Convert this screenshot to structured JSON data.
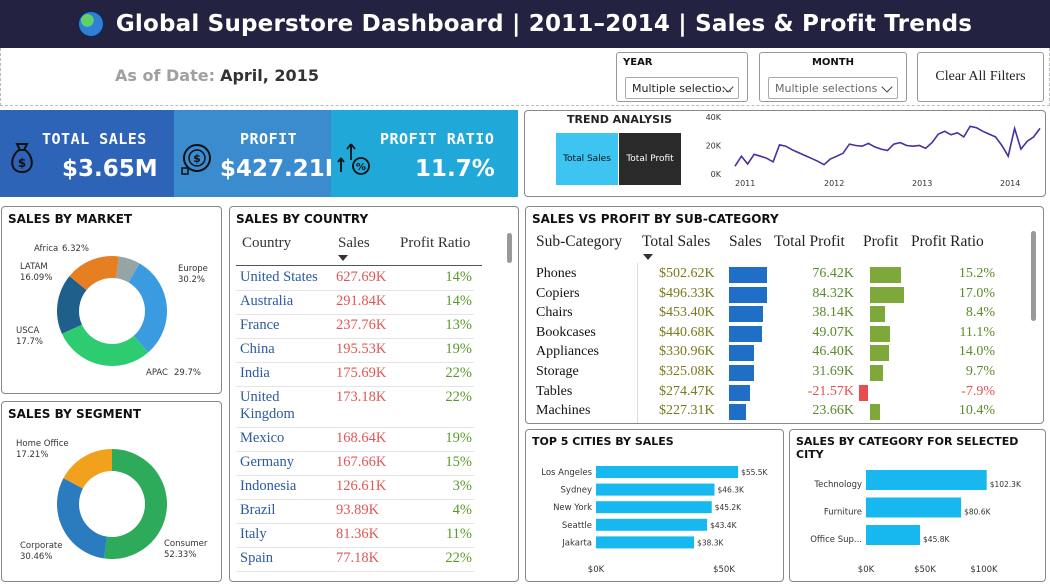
{
  "header": {
    "title": "Global Superstore Dashboard | 2011–2014 | Sales & Profit Trends"
  },
  "as_of": {
    "label": "As of Date:",
    "value": "April, 2015"
  },
  "slicers": {
    "year": {
      "title": "YEAR",
      "value": "Multiple selectio..."
    },
    "month": {
      "title": "MONTH",
      "value": "Multiple selections"
    },
    "clear_label": "Clear All Filters"
  },
  "kpis": {
    "sales": {
      "label": "TOTAL SALES",
      "value": "$3.65M"
    },
    "profit": {
      "label": "PROFIT",
      "value": "$427.21K"
    },
    "ratio": {
      "label": "PROFIT RATIO",
      "value": "11.7%"
    }
  },
  "colors": {
    "blue": "#2e6bbf",
    "mid_blue": "#3b8ed0",
    "teal": "#22a9d4",
    "cyan": "#3ec4f0",
    "green": "#7fa83a",
    "red": "#e84d4d",
    "navy": "#232341",
    "bar_blue": "#1f6fc6",
    "city_cyan": "#17b8ef",
    "line_purple": "#4b2e9e"
  },
  "trend": {
    "title": "TREND ANALYSIS",
    "buttons": [
      "Total Sales",
      "Total Profit"
    ],
    "chart_data": {
      "type": "line",
      "y_ticks": [
        "40K",
        "20K",
        "0K"
      ],
      "x_ticks": [
        "2011",
        "2012",
        "2013",
        "2014"
      ],
      "ylim": [
        0,
        40000
      ],
      "values": [
        5500,
        12500,
        7000,
        13800,
        12500,
        11000,
        8500,
        20500,
        19500,
        17000,
        15000,
        13000,
        11000,
        9000,
        6500,
        10500,
        12500,
        14500,
        21000,
        20000,
        19500,
        21500,
        19000,
        17500,
        16500,
        21000,
        22000,
        20000,
        19500,
        20000,
        18000,
        22000,
        28000,
        30000,
        27500,
        29000,
        26000,
        33500,
        32500,
        30000,
        28000,
        26000,
        20000,
        12500,
        32000,
        17500,
        23000,
        26000,
        32000
      ]
    }
  },
  "market": {
    "title": "SALES BY MARKET",
    "chart_data": {
      "type": "pie",
      "slices": [
        {
          "name": "Europe",
          "label": "Europe",
          "pct": "30.2%",
          "value": 30.2,
          "color": "#3a9be0"
        },
        {
          "name": "APAC",
          "label": "APAC",
          "pct": "29.7%",
          "value": 29.7,
          "color": "#2ecc71"
        },
        {
          "name": "USCA",
          "label": "USCA",
          "pct": "17.7%",
          "value": 17.7,
          "color": "#1f5f8b"
        },
        {
          "name": "LATAM",
          "label": "LATAM",
          "pct": "16.09%",
          "value": 16.09,
          "color": "#e67e22"
        },
        {
          "name": "Africa",
          "label": "Africa",
          "pct": "6.32%",
          "value": 6.32,
          "color": "#95a5a6"
        }
      ]
    }
  },
  "segment": {
    "title": "SALES BY SEGMENT",
    "chart_data": {
      "type": "pie",
      "slices": [
        {
          "name": "Consumer",
          "label": "Consumer",
          "pct": "52.33%",
          "value": 52.33,
          "color": "#2daa5a"
        },
        {
          "name": "Corporate",
          "label": "Corporate",
          "pct": "30.46%",
          "value": 30.46,
          "color": "#2b7bbf"
        },
        {
          "name": "Home Office",
          "label": "Home Office",
          "pct": "17.21%",
          "value": 17.21,
          "color": "#f1a11c"
        }
      ]
    }
  },
  "country": {
    "title": "SALES BY COUNTRY",
    "headers": [
      "Country",
      "Sales",
      "Profit Ratio"
    ],
    "rows": [
      {
        "country": "United States",
        "sales": "627.69K",
        "ratio": "14%"
      },
      {
        "country": "Australia",
        "sales": "291.84K",
        "ratio": "14%"
      },
      {
        "country": "France",
        "sales": "237.76K",
        "ratio": "13%"
      },
      {
        "country": "China",
        "sales": "195.53K",
        "ratio": "19%"
      },
      {
        "country": "India",
        "sales": "175.69K",
        "ratio": "22%"
      },
      {
        "country": "United Kingdom",
        "sales": "173.18K",
        "ratio": "22%"
      },
      {
        "country": "Mexico",
        "sales": "168.64K",
        "ratio": "19%"
      },
      {
        "country": "Germany",
        "sales": "167.66K",
        "ratio": "15%"
      },
      {
        "country": "Indonesia",
        "sales": "126.61K",
        "ratio": "3%"
      },
      {
        "country": "Brazil",
        "sales": "93.89K",
        "ratio": "4%"
      },
      {
        "country": "Italy",
        "sales": "81.36K",
        "ratio": "11%"
      },
      {
        "country": "Spain",
        "sales": "77.18K",
        "ratio": "22%"
      }
    ]
  },
  "subcat": {
    "title": "SALES VS PROFIT BY SUB-CATEGORY",
    "headers": [
      "Sub-Category",
      "Total Sales",
      "Sales",
      "Total Profit",
      "Profit",
      "Profit Ratio"
    ],
    "rows": [
      {
        "name": "Phones",
        "sales": "$502.62K",
        "sales_v": 502.62,
        "profit": "76.42K",
        "profit_v": 76.42,
        "ratio": "15.2%"
      },
      {
        "name": "Copiers",
        "sales": "$496.33K",
        "sales_v": 496.33,
        "profit": "84.32K",
        "profit_v": 84.32,
        "ratio": "17.0%"
      },
      {
        "name": "Chairs",
        "sales": "$453.40K",
        "sales_v": 453.4,
        "profit": "38.14K",
        "profit_v": 38.14,
        "ratio": "8.4%"
      },
      {
        "name": "Bookcases",
        "sales": "$440.68K",
        "sales_v": 440.68,
        "profit": "49.07K",
        "profit_v": 49.07,
        "ratio": "11.1%"
      },
      {
        "name": "Appliances",
        "sales": "$330.96K",
        "sales_v": 330.96,
        "profit": "46.40K",
        "profit_v": 46.4,
        "ratio": "14.0%"
      },
      {
        "name": "Storage",
        "sales": "$325.08K",
        "sales_v": 325.08,
        "profit": "31.69K",
        "profit_v": 31.69,
        "ratio": "9.7%"
      },
      {
        "name": "Tables",
        "sales": "$274.47K",
        "sales_v": 274.47,
        "profit": "-21.57K",
        "profit_v": -21.57,
        "ratio": "-7.9%"
      },
      {
        "name": "Machines",
        "sales": "$227.31K",
        "sales_v": 227.31,
        "profit": "23.66K",
        "profit_v": 23.66,
        "ratio": "10.4%"
      }
    ]
  },
  "cities": {
    "title": "TOP 5 CITIES BY SALES",
    "chart_data": {
      "type": "bar",
      "categories": [
        "Los Angeles",
        "Sydney",
        "New York",
        "Seattle",
        "Jakarta"
      ],
      "values": [
        55500,
        46300,
        45200,
        43400,
        38300
      ],
      "labels": [
        "$55.5K",
        "$46.3K",
        "$45.2K",
        "$43.4K",
        "$38.3K"
      ],
      "x_ticks": [
        "$0K",
        "$50K"
      ],
      "xlim": [
        0,
        100000
      ]
    }
  },
  "category": {
    "title": "SALES BY CATEGORY FOR SELECTED CITY",
    "chart_data": {
      "type": "bar",
      "categories": [
        "Technology",
        "Furniture",
        "Office Sup..."
      ],
      "values": [
        102300,
        80600,
        45800
      ],
      "labels": [
        "$102.3K",
        "$80.6K",
        "$45.8K"
      ],
      "x_ticks": [
        "$0K",
        "$50K",
        "$100K"
      ],
      "xlim": [
        0,
        100000
      ]
    }
  }
}
